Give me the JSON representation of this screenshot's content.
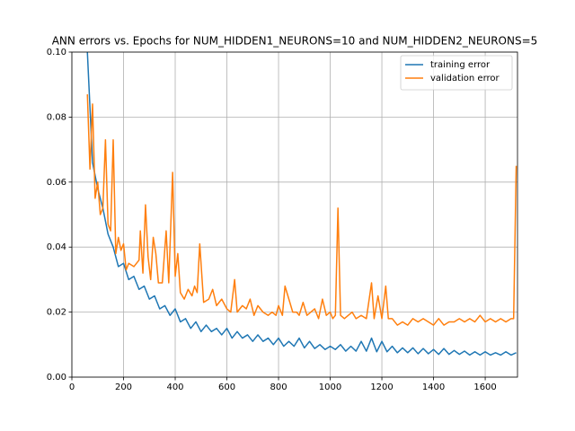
{
  "chart_data": {
    "type": "line",
    "title": "ANN errors vs. Epochs for NUM_HIDDEN1_NEURONS=10 and NUM_HIDDEN2_NEURONS=5",
    "xlim": [
      0,
      1725
    ],
    "ylim": [
      0,
      0.1
    ],
    "xticks": [
      0,
      200,
      400,
      600,
      800,
      1000,
      1200,
      1400,
      1600
    ],
    "yticks": [
      {
        "value": 0,
        "label": "0.00"
      },
      {
        "value": 0.02,
        "label": "0.02"
      },
      {
        "value": 0.04,
        "label": "0.04"
      },
      {
        "value": 0.06,
        "label": "0.06"
      },
      {
        "value": 0.08,
        "label": "0.08"
      },
      {
        "value": 0.1,
        "label": "0.10"
      }
    ],
    "grid": true,
    "legend": "upper right",
    "series": [
      {
        "name": "training error",
        "color": "#1f77b4",
        "x": [
          60,
          80,
          100,
          120,
          140,
          160,
          180,
          200,
          220,
          240,
          260,
          280,
          300,
          320,
          340,
          360,
          380,
          400,
          420,
          440,
          460,
          480,
          500,
          520,
          540,
          560,
          580,
          600,
          620,
          640,
          660,
          680,
          700,
          720,
          740,
          760,
          780,
          800,
          820,
          840,
          860,
          880,
          900,
          920,
          940,
          960,
          980,
          1000,
          1020,
          1040,
          1060,
          1080,
          1100,
          1120,
          1140,
          1160,
          1180,
          1200,
          1220,
          1240,
          1260,
          1280,
          1300,
          1320,
          1340,
          1360,
          1380,
          1400,
          1420,
          1440,
          1460,
          1480,
          1500,
          1520,
          1540,
          1560,
          1580,
          1600,
          1620,
          1640,
          1660,
          1680,
          1700,
          1720
        ],
        "values": [
          0.1,
          0.066,
          0.058,
          0.052,
          0.044,
          0.04,
          0.034,
          0.035,
          0.03,
          0.031,
          0.027,
          0.028,
          0.024,
          0.025,
          0.021,
          0.022,
          0.019,
          0.021,
          0.017,
          0.018,
          0.015,
          0.017,
          0.014,
          0.016,
          0.014,
          0.015,
          0.013,
          0.015,
          0.012,
          0.014,
          0.012,
          0.013,
          0.011,
          0.013,
          0.011,
          0.012,
          0.01,
          0.012,
          0.0095,
          0.011,
          0.0095,
          0.012,
          0.009,
          0.011,
          0.0088,
          0.01,
          0.0085,
          0.0095,
          0.0085,
          0.01,
          0.008,
          0.0095,
          0.008,
          0.011,
          0.008,
          0.012,
          0.0078,
          0.011,
          0.0078,
          0.0095,
          0.0075,
          0.009,
          0.0075,
          0.009,
          0.0072,
          0.0088,
          0.0072,
          0.0085,
          0.007,
          0.0088,
          0.007,
          0.0082,
          0.007,
          0.008,
          0.0068,
          0.0078,
          0.0068,
          0.0078,
          0.0068,
          0.0075,
          0.0068,
          0.0078,
          0.0068,
          0.0075
        ]
      },
      {
        "name": "validation error",
        "color": "#ff7f0e",
        "x": [
          60,
          70,
          80,
          90,
          100,
          110,
          120,
          130,
          140,
          150,
          160,
          170,
          180,
          190,
          200,
          210,
          220,
          240,
          260,
          265,
          275,
          285,
          295,
          305,
          315,
          325,
          335,
          350,
          365,
          375,
          390,
          400,
          410,
          420,
          435,
          450,
          465,
          475,
          485,
          495,
          510,
          530,
          545,
          560,
          580,
          600,
          615,
          630,
          640,
          660,
          675,
          690,
          705,
          720,
          740,
          760,
          775,
          790,
          800,
          815,
          825,
          840,
          855,
          870,
          880,
          895,
          910,
          925,
          940,
          955,
          970,
          985,
          1000,
          1010,
          1020,
          1030,
          1040,
          1055,
          1070,
          1085,
          1100,
          1120,
          1140,
          1160,
          1170,
          1185,
          1200,
          1215,
          1225,
          1240,
          1260,
          1280,
          1300,
          1320,
          1340,
          1360,
          1380,
          1400,
          1420,
          1440,
          1460,
          1480,
          1500,
          1520,
          1540,
          1560,
          1580,
          1600,
          1620,
          1640,
          1660,
          1680,
          1700,
          1710,
          1720
        ],
        "values": [
          0.087,
          0.064,
          0.084,
          0.055,
          0.06,
          0.05,
          0.052,
          0.073,
          0.047,
          0.045,
          0.073,
          0.038,
          0.043,
          0.039,
          0.041,
          0.033,
          0.035,
          0.034,
          0.036,
          0.045,
          0.032,
          0.053,
          0.037,
          0.03,
          0.043,
          0.038,
          0.029,
          0.029,
          0.045,
          0.029,
          0.063,
          0.031,
          0.038,
          0.026,
          0.024,
          0.027,
          0.025,
          0.028,
          0.026,
          0.041,
          0.023,
          0.024,
          0.027,
          0.022,
          0.024,
          0.021,
          0.02,
          0.03,
          0.02,
          0.022,
          0.021,
          0.024,
          0.019,
          0.022,
          0.02,
          0.019,
          0.02,
          0.019,
          0.022,
          0.019,
          0.028,
          0.024,
          0.02,
          0.02,
          0.019,
          0.023,
          0.019,
          0.02,
          0.021,
          0.018,
          0.024,
          0.019,
          0.02,
          0.018,
          0.019,
          0.052,
          0.019,
          0.018,
          0.019,
          0.02,
          0.018,
          0.019,
          0.018,
          0.029,
          0.018,
          0.025,
          0.018,
          0.028,
          0.018,
          0.018,
          0.016,
          0.017,
          0.016,
          0.018,
          0.017,
          0.018,
          0.017,
          0.016,
          0.018,
          0.016,
          0.017,
          0.017,
          0.018,
          0.017,
          0.018,
          0.017,
          0.019,
          0.017,
          0.018,
          0.017,
          0.018,
          0.017,
          0.018,
          0.018,
          0.065
        ]
      }
    ]
  }
}
